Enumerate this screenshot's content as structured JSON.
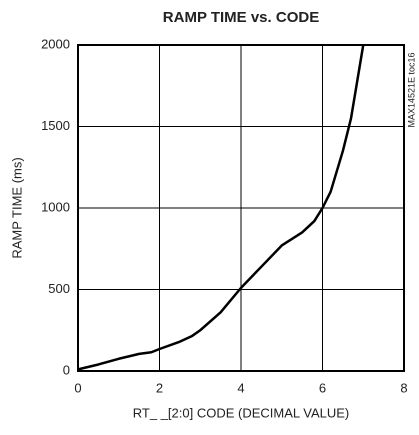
{
  "chart_data": {
    "type": "line",
    "title": "RAMP TIME vs. CODE",
    "xlabel": "RT_ _[2:0] CODE (DECIMAL VALUE)",
    "ylabel": "RAMP TIME (ms)",
    "annotation": "MAX14521E toc16",
    "x": [
      0,
      0.5,
      1,
      1.5,
      1.8,
      2,
      2.5,
      2.8,
      3,
      3.5,
      4,
      4.5,
      5,
      5.5,
      5.8,
      6,
      6.2,
      6.5,
      6.7,
      7
    ],
    "series": [
      {
        "name": "RAMP TIME",
        "color": "#000000",
        "values": [
          10,
          40,
          75,
          105,
          115,
          135,
          180,
          215,
          250,
          360,
          510,
          640,
          770,
          850,
          920,
          1000,
          1100,
          1350,
          1550,
          2000
        ]
      }
    ],
    "xlim": [
      0,
      8
    ],
    "xticks": [
      0,
      2,
      4,
      6,
      8
    ],
    "ylim": [
      0,
      2000
    ],
    "yticks": [
      0,
      500,
      1000,
      1500,
      2000
    ],
    "grid": true
  }
}
